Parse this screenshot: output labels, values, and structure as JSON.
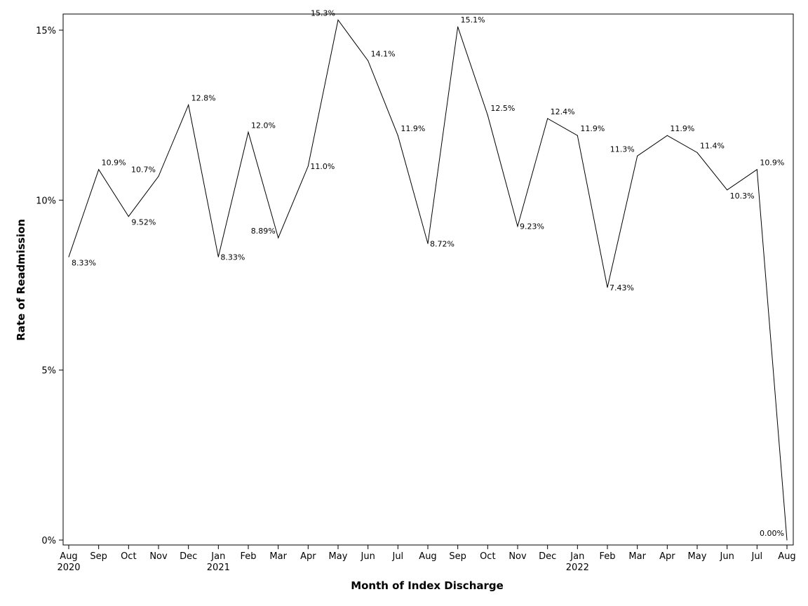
{
  "chart_data": {
    "type": "line",
    "title": "",
    "xlabel": "Month of Index Discharge",
    "ylabel": "Rate of Readmission",
    "ylim": [
      0,
      15.5
    ],
    "y_ticks": [
      0,
      5,
      10,
      15
    ],
    "y_tick_labels": [
      "0%",
      "5%",
      "10%",
      "15%"
    ],
    "grid": false,
    "legend": "none",
    "categories": [
      "Aug",
      "Sep",
      "Oct",
      "Nov",
      "Dec",
      "Jan",
      "Feb",
      "Mar",
      "Apr",
      "May",
      "Jun",
      "Jul",
      "Aug",
      "Sep",
      "Oct",
      "Nov",
      "Dec",
      "Jan",
      "Feb",
      "Mar",
      "Apr",
      "May",
      "Jun",
      "Jul",
      "Aug"
    ],
    "year_labels": [
      {
        "index": 0,
        "text": "2020"
      },
      {
        "index": 5,
        "text": "2021"
      },
      {
        "index": 17,
        "text": "2022"
      }
    ],
    "values": [
      8.33,
      10.9,
      9.52,
      10.7,
      12.8,
      8.33,
      12.0,
      8.89,
      11.0,
      15.3,
      14.1,
      11.9,
      8.72,
      15.1,
      12.5,
      9.23,
      12.4,
      11.9,
      7.43,
      11.3,
      11.9,
      11.4,
      10.3,
      10.9,
      0.0
    ],
    "data_labels": [
      "8.33%",
      "10.9%",
      "9.52%",
      "10.7%",
      "12.8%",
      "8.33%",
      "12.0%",
      "8.89%",
      "11.0%",
      "15.3%",
      "14.1%",
      "11.9%",
      "8.72%",
      "15.1%",
      "12.5%",
      "9.23%",
      "12.4%",
      "11.9%",
      "7.43%",
      "11.3%",
      "11.9%",
      "11.4%",
      "10.3%",
      "10.9%",
      "0.00%"
    ],
    "label_placement": [
      "below",
      "above",
      "below",
      "left",
      "above",
      "right",
      "above",
      "left",
      "right",
      "left",
      "above",
      "above",
      "right",
      "above",
      "above",
      "right",
      "above",
      "above",
      "right",
      "left",
      "above",
      "above",
      "below",
      "above",
      "left"
    ]
  }
}
